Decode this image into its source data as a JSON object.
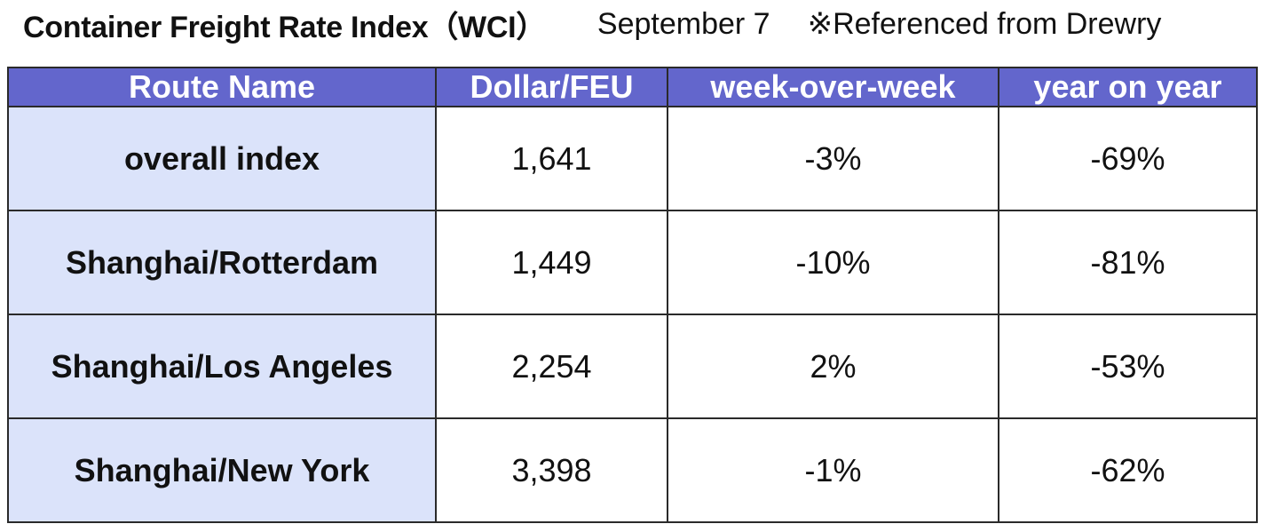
{
  "header": {
    "title": "Container Freight Rate Index（WCI）",
    "date": "September 7",
    "reference": "※Referenced from Drewry"
  },
  "table": {
    "columns": [
      "Route Name",
      "Dollar/FEU",
      "week-over-week",
      "year on year"
    ],
    "rows": [
      {
        "route": "overall index",
        "dollar_feu": "1,641",
        "wow": "-3%",
        "yoy": "-69%"
      },
      {
        "route": "Shanghai/Rotterdam",
        "dollar_feu": "1,449",
        "wow": "-10%",
        "yoy": "-81%"
      },
      {
        "route": "Shanghai/Los Angeles",
        "dollar_feu": "2,254",
        "wow": "2%",
        "yoy": "-53%"
      },
      {
        "route": "Shanghai/New York",
        "dollar_feu": "3,398",
        "wow": "-1%",
        "yoy": "-62%"
      }
    ]
  },
  "colors": {
    "header_bg": "#6366cc",
    "route_cell_bg": "#dbe3fa"
  }
}
